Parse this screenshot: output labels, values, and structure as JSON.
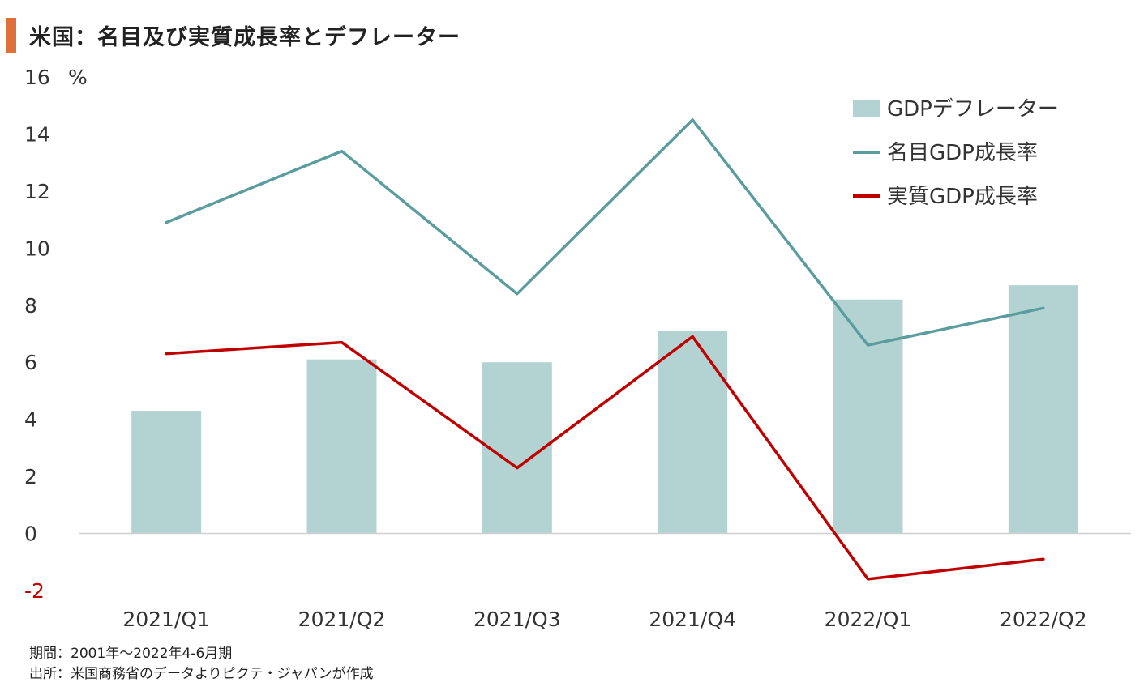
{
  "title": "米国：名目及び実質成長率とデフレーター",
  "notes": {
    "period": "期間：2001年～2022年4-6月期",
    "source": "出所：米国商務省のデータよりピクテ・ジャパンが作成"
  },
  "colors": {
    "accent": "#e0703a",
    "deflator_bar": "#b3d3d3",
    "nominal_line": "#5b9c9f",
    "real_line": "#c00000",
    "negative_tick": "#c00000"
  },
  "chart_data": {
    "type": "bar",
    "categories": [
      "2021/Q1",
      "2021/Q2",
      "2021/Q3",
      "2021/Q4",
      "2022/Q1",
      "2022/Q2"
    ],
    "y_unit": "%",
    "ylim": [
      -2,
      16
    ],
    "yticks": [
      16,
      14,
      12,
      10,
      8,
      6,
      4,
      2,
      0,
      -2
    ],
    "ytick_labels": [
      "16",
      "14",
      "12",
      "10",
      "8",
      "6",
      "4",
      "2",
      "0",
      "-2"
    ],
    "grid": false,
    "legend_position": "top-right",
    "series": [
      {
        "name": "GDPデフレーター",
        "kind": "bar",
        "values": [
          4.3,
          6.1,
          6.0,
          7.1,
          8.2,
          8.7
        ]
      },
      {
        "name": "名目GDP成長率",
        "kind": "line",
        "values": [
          10.9,
          13.4,
          8.4,
          14.5,
          6.6,
          7.9
        ]
      },
      {
        "name": "実質GDP成長率",
        "kind": "line",
        "values": [
          6.3,
          6.7,
          2.3,
          6.9,
          -1.6,
          -0.9
        ]
      }
    ]
  }
}
